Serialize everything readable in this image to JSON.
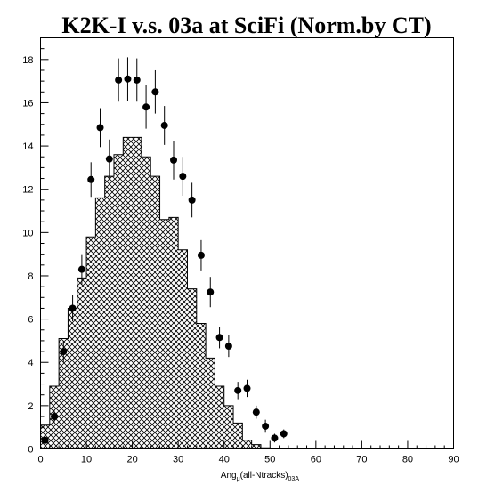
{
  "chart_data": {
    "type": "bar",
    "title": "K2K-I v.s. 03a at SciFi (Norm.by CT)",
    "xlabel": {
      "main": "Ang",
      "sub1": "μ",
      "mid": "(all-Ntracks)",
      "sub2": "03A"
    },
    "xlim": [
      0,
      90
    ],
    "ylim": [
      0,
      19
    ],
    "x_ticks": [
      0,
      10,
      20,
      30,
      40,
      50,
      60,
      70,
      80,
      90
    ],
    "y_ticks": [
      0,
      2,
      4,
      6,
      8,
      10,
      12,
      14,
      16,
      18
    ],
    "grid": false,
    "histogram": {
      "bin_width": 2,
      "bin_edges_start": 0,
      "values": [
        1.1,
        2.9,
        5.1,
        6.5,
        7.9,
        9.8,
        11.6,
        12.6,
        13.6,
        14.4,
        14.4,
        13.5,
        12.6,
        10.6,
        10.7,
        9.2,
        7.4,
        5.8,
        4.2,
        2.9,
        2.0,
        1.2,
        0.4,
        0.2,
        0.05,
        0.02,
        0,
        0,
        0,
        0,
        0,
        0,
        0,
        0,
        0,
        0,
        0,
        0,
        0,
        0,
        0,
        0,
        0,
        0,
        0
      ]
    },
    "points": [
      {
        "x": 1,
        "y": 0.4,
        "err": 0.1
      },
      {
        "x": 3,
        "y": 1.5,
        "err": 0.3
      },
      {
        "x": 5,
        "y": 4.5,
        "err": 0.5
      },
      {
        "x": 7,
        "y": 6.5,
        "err": 0.6
      },
      {
        "x": 9,
        "y": 8.3,
        "err": 0.7
      },
      {
        "x": 11,
        "y": 12.45,
        "err": 0.8
      },
      {
        "x": 13,
        "y": 14.85,
        "err": 0.9
      },
      {
        "x": 15,
        "y": 13.4,
        "err": 0.9
      },
      {
        "x": 17,
        "y": 17.05,
        "err": 1.0
      },
      {
        "x": 19,
        "y": 17.1,
        "err": 1.0
      },
      {
        "x": 21,
        "y": 17.05,
        "err": 1.0
      },
      {
        "x": 23,
        "y": 15.8,
        "err": 1.0
      },
      {
        "x": 25,
        "y": 16.5,
        "err": 1.0
      },
      {
        "x": 27,
        "y": 14.95,
        "err": 0.9
      },
      {
        "x": 29,
        "y": 13.35,
        "err": 0.9
      },
      {
        "x": 31,
        "y": 12.6,
        "err": 0.9
      },
      {
        "x": 33,
        "y": 11.5,
        "err": 0.8
      },
      {
        "x": 35,
        "y": 8.95,
        "err": 0.7
      },
      {
        "x": 37,
        "y": 7.25,
        "err": 0.7
      },
      {
        "x": 39,
        "y": 5.15,
        "err": 0.5
      },
      {
        "x": 41,
        "y": 4.75,
        "err": 0.5
      },
      {
        "x": 43,
        "y": 2.7,
        "err": 0.4
      },
      {
        "x": 45,
        "y": 2.8,
        "err": 0.4
      },
      {
        "x": 47,
        "y": 1.7,
        "err": 0.3
      },
      {
        "x": 49,
        "y": 1.05,
        "err": 0.3
      },
      {
        "x": 51,
        "y": 0.5,
        "err": 0.2
      },
      {
        "x": 53,
        "y": 0.7,
        "err": 0.2
      }
    ]
  }
}
